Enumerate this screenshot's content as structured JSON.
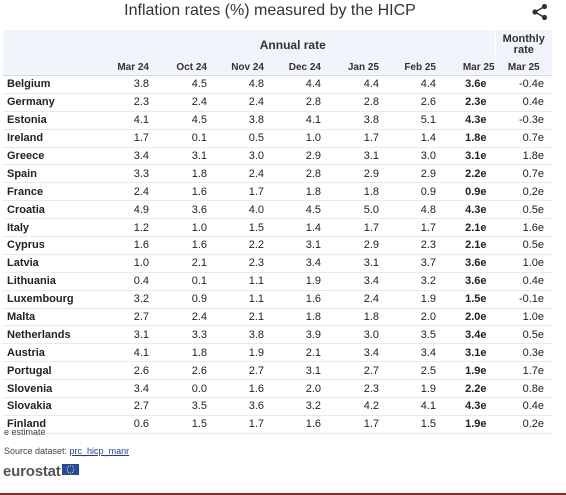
{
  "title": "Inflation rates (%) measured by the HICP",
  "header": {
    "annual": "Annual rate",
    "monthly": "Monthly rate",
    "monthly_line1": "Monthly",
    "monthly_line2": "rate"
  },
  "footer": {
    "note": "e estimate",
    "source_prefix": "Source dataset: ",
    "source_link": "prc_hicp_manr",
    "brand": "eurostat"
  },
  "icons": {
    "share": "share-icon",
    "flag": "eu-flag-icon"
  },
  "colors": {
    "header_bg": "#f1f4fa",
    "logo_blue": "#1f4aa8",
    "bottom_border": "#8a2b2b"
  },
  "chart_data": {
    "type": "table",
    "title": "Inflation rates (%) measured by the HICP",
    "columns": [
      "Mar 24",
      "Oct 24",
      "Nov 24",
      "Dec 24",
      "Jan 25",
      "Feb 25",
      "Mar 25",
      "Mar 25"
    ],
    "column_groups": [
      {
        "name": "Annual rate",
        "columns": [
          "Mar 24",
          "Oct 24",
          "Nov 24",
          "Dec 24",
          "Jan 25",
          "Feb 25",
          "Mar 25"
        ]
      },
      {
        "name": "Monthly rate",
        "columns": [
          "Mar 25"
        ]
      }
    ],
    "rows": [
      {
        "country": "Belgium",
        "values": [
          "3.8",
          "4.5",
          "4.8",
          "4.4",
          "4.4",
          "4.4",
          "3.6e",
          "-0.4e"
        ]
      },
      {
        "country": "Germany",
        "values": [
          "2.3",
          "2.4",
          "2.4",
          "2.8",
          "2.8",
          "2.6",
          "2.3e",
          "0.4e"
        ]
      },
      {
        "country": "Estonia",
        "values": [
          "4.1",
          "4.5",
          "3.8",
          "4.1",
          "3.8",
          "5.1",
          "4.3e",
          "-0.3e"
        ]
      },
      {
        "country": "Ireland",
        "values": [
          "1.7",
          "0.1",
          "0.5",
          "1.0",
          "1.7",
          "1.4",
          "1.8e",
          "0.7e"
        ]
      },
      {
        "country": "Greece",
        "values": [
          "3.4",
          "3.1",
          "3.0",
          "2.9",
          "3.1",
          "3.0",
          "3.1e",
          "1.8e"
        ]
      },
      {
        "country": "Spain",
        "values": [
          "3.3",
          "1.8",
          "2.4",
          "2.8",
          "2.9",
          "2.9",
          "2.2e",
          "0.7e"
        ]
      },
      {
        "country": "France",
        "values": [
          "2.4",
          "1.6",
          "1.7",
          "1.8",
          "1.8",
          "0.9",
          "0.9e",
          "0.2e"
        ]
      },
      {
        "country": "Croatia",
        "values": [
          "4.9",
          "3.6",
          "4.0",
          "4.5",
          "5.0",
          "4.8",
          "4.3e",
          "0.5e"
        ]
      },
      {
        "country": "Italy",
        "values": [
          "1.2",
          "1.0",
          "1.5",
          "1.4",
          "1.7",
          "1.7",
          "2.1e",
          "1.6e"
        ]
      },
      {
        "country": "Cyprus",
        "values": [
          "1.6",
          "1.6",
          "2.2",
          "3.1",
          "2.9",
          "2.3",
          "2.1e",
          "0.5e"
        ]
      },
      {
        "country": "Latvia",
        "values": [
          "1.0",
          "2.1",
          "2.3",
          "3.4",
          "3.1",
          "3.7",
          "3.6e",
          "1.0e"
        ]
      },
      {
        "country": "Lithuania",
        "values": [
          "0.4",
          "0.1",
          "1.1",
          "1.9",
          "3.4",
          "3.2",
          "3.6e",
          "0.4e"
        ]
      },
      {
        "country": "Luxembourg",
        "values": [
          "3.2",
          "0.9",
          "1.1",
          "1.6",
          "2.4",
          "1.9",
          "1.5e",
          "-0.1e"
        ]
      },
      {
        "country": "Malta",
        "values": [
          "2.7",
          "2.4",
          "2.1",
          "1.8",
          "1.8",
          "2.0",
          "2.0e",
          "1.0e"
        ]
      },
      {
        "country": "Netherlands",
        "values": [
          "3.1",
          "3.3",
          "3.8",
          "3.9",
          "3.0",
          "3.5",
          "3.4e",
          "0.5e"
        ]
      },
      {
        "country": "Austria",
        "values": [
          "4.1",
          "1.8",
          "1.9",
          "2.1",
          "3.4",
          "3.4",
          "3.1e",
          "0.3e"
        ]
      },
      {
        "country": "Portugal",
        "values": [
          "2.6",
          "2.6",
          "2.7",
          "3.1",
          "2.7",
          "2.5",
          "1.9e",
          "1.7e"
        ]
      },
      {
        "country": "Slovenia",
        "values": [
          "3.4",
          "0.0",
          "1.6",
          "2.0",
          "2.3",
          "1.9",
          "2.2e",
          "0.8e"
        ]
      },
      {
        "country": "Slovakia",
        "values": [
          "2.7",
          "3.5",
          "3.6",
          "3.2",
          "4.2",
          "4.1",
          "4.3e",
          "0.4e"
        ]
      },
      {
        "country": "Finland",
        "values": [
          "0.6",
          "1.5",
          "1.7",
          "1.6",
          "1.7",
          "1.5",
          "1.9e",
          "0.2e"
        ]
      }
    ]
  }
}
